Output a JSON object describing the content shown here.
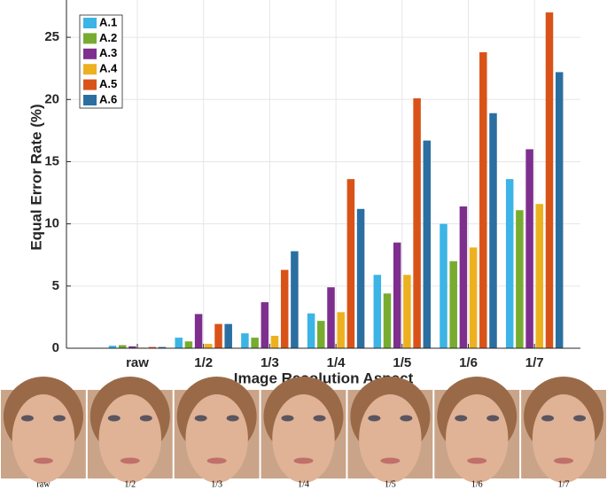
{
  "chart_data": {
    "type": "bar",
    "x_label": "Image Resolution Aspect",
    "y_label": "Equal Error Rate (%)",
    "categories": [
      "raw",
      "1/2",
      "1/3",
      "1/4",
      "1/5",
      "1/6",
      "1/7"
    ],
    "series": [
      {
        "name": "A.1",
        "color": "#3cb4e5",
        "values": [
          0.2,
          0.85,
          1.2,
          2.8,
          5.9,
          10.0,
          13.6
        ]
      },
      {
        "name": "A.2",
        "color": "#77ac30",
        "values": [
          0.25,
          0.55,
          0.85,
          2.2,
          4.4,
          7.0,
          11.1
        ]
      },
      {
        "name": "A.3",
        "color": "#7e2f8e",
        "values": [
          0.15,
          2.75,
          3.7,
          4.9,
          8.5,
          11.4,
          16.0
        ]
      },
      {
        "name": "A.4",
        "color": "#edb120",
        "values": [
          0.05,
          0.35,
          1.0,
          2.9,
          5.9,
          8.1,
          11.6
        ]
      },
      {
        "name": "A.5",
        "color": "#d95319",
        "values": [
          0.1,
          1.95,
          6.3,
          13.6,
          20.1,
          23.8,
          27.0
        ]
      },
      {
        "name": "A.6",
        "color": "#2b6fa1",
        "values": [
          0.1,
          1.95,
          7.8,
          11.2,
          16.7,
          18.9,
          22.2
        ]
      }
    ],
    "ylim": [
      0,
      28
    ],
    "yticks": [
      0,
      5,
      10,
      15,
      20,
      25
    ],
    "grid": true,
    "legend": "upper-left"
  },
  "image_strip": {
    "labels": [
      "raw",
      "1/2",
      "1/3",
      "1/4",
      "1/5",
      "1/6",
      "1/7"
    ]
  }
}
